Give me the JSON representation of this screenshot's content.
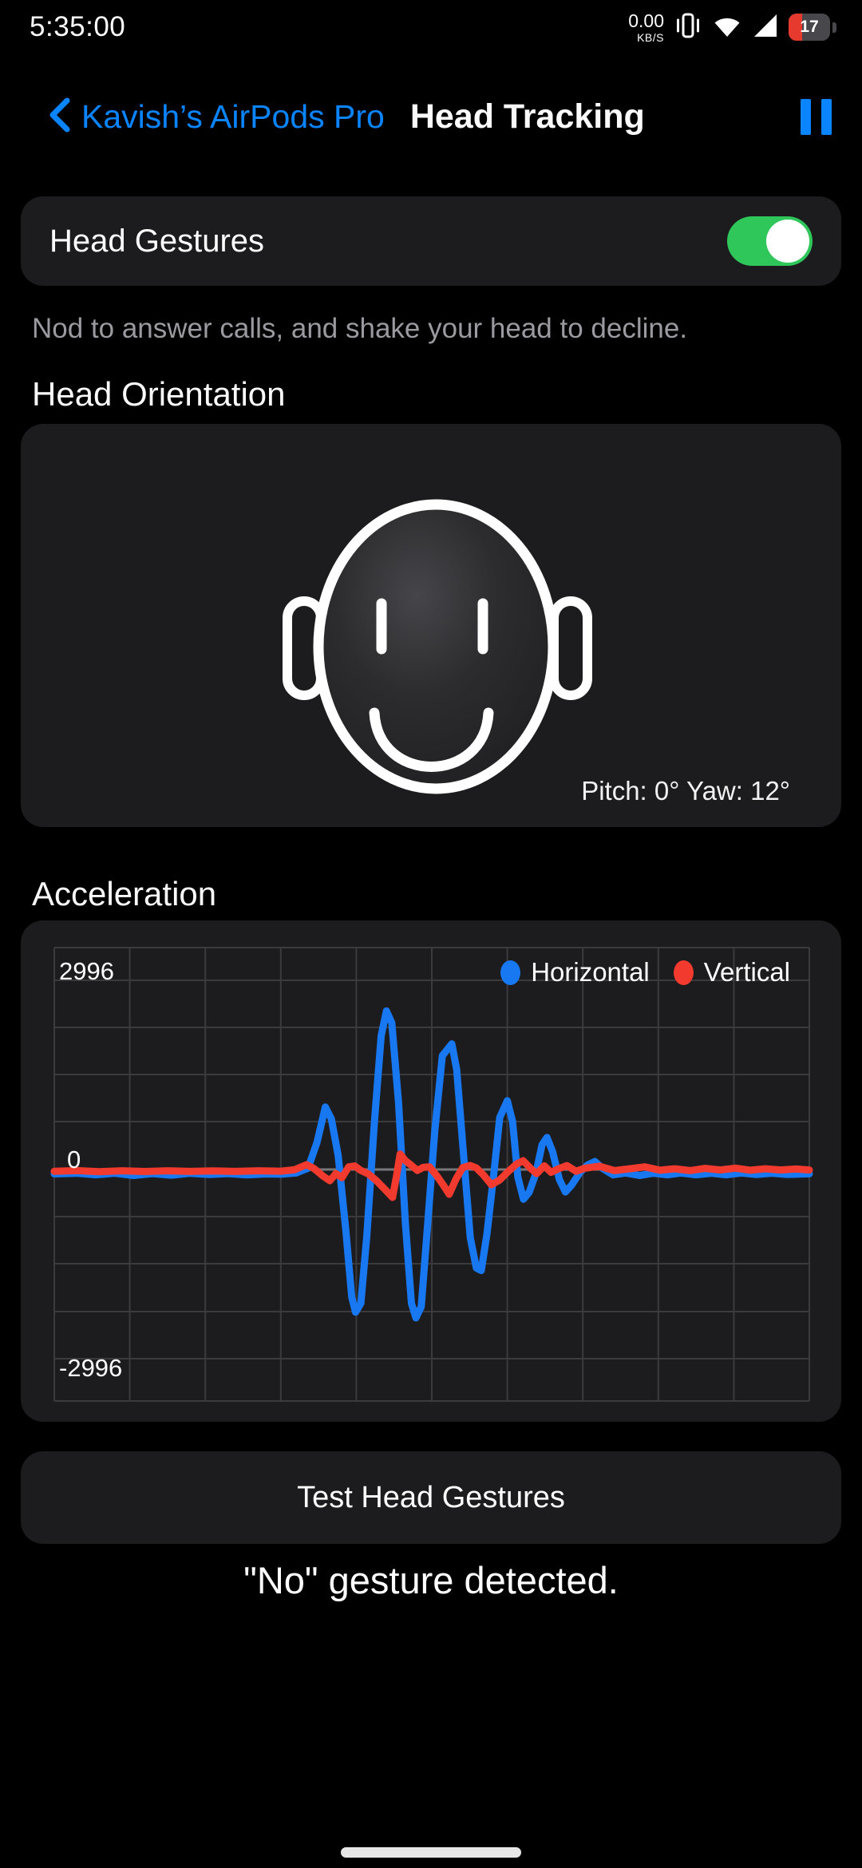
{
  "status_bar": {
    "time": "5:35:00",
    "network_speed": "0.00",
    "network_unit": "KB/S",
    "battery_percent": "17",
    "icons": [
      "vibrate-icon",
      "wifi-icon",
      "cell-signal-icon",
      "battery-icon"
    ]
  },
  "header": {
    "back_label": "Kavish’s AirPods Pro",
    "title": "Head Tracking"
  },
  "gesture_card": {
    "label": "Head Gestures",
    "toggle_state": "on"
  },
  "gesture_hint": "Nod to answer calls, and shake your head to decline.",
  "orientation": {
    "section_title": "Head Orientation",
    "pitch_yaw": "Pitch: 0° Yaw: 12°"
  },
  "acceleration": {
    "section_title": "Acceleration"
  },
  "test_button_label": "Test Head Gestures",
  "gesture_result": "\"No\" gesture detected.",
  "colors": {
    "accent": "#0a84ff",
    "green": "#2fc65a",
    "card": "#1c1c1e",
    "muted": "#9a9aa0",
    "battery-red": "#e63a2e",
    "grid": "#3b3b3e",
    "zero": "#78787c"
  },
  "chart_data": {
    "type": "line",
    "title": "Acceleration",
    "xlabel": "",
    "ylabel": "",
    "ylim": [
      -2996,
      2996
    ],
    "y_ticks": [
      "2996",
      "0",
      "-2996"
    ],
    "grid": true,
    "legend_position": "top-right",
    "x_range": [
      0,
      1
    ],
    "series": [
      {
        "name": "Horizontal",
        "color": "#1878f2",
        "points": [
          [
            0,
            -70
          ],
          [
            0.03,
            -60
          ],
          [
            0.055,
            -85
          ],
          [
            0.08,
            -60
          ],
          [
            0.105,
            -95
          ],
          [
            0.13,
            -65
          ],
          [
            0.155,
            -90
          ],
          [
            0.18,
            -60
          ],
          [
            0.205,
            -80
          ],
          [
            0.23,
            -65
          ],
          [
            0.255,
            -85
          ],
          [
            0.28,
            -70
          ],
          [
            0.3,
            -75
          ],
          [
            0.32,
            -55
          ],
          [
            0.336,
            20
          ],
          [
            0.348,
            430
          ],
          [
            0.359,
            990
          ],
          [
            0.367,
            800
          ],
          [
            0.376,
            220
          ],
          [
            0.386,
            -950
          ],
          [
            0.394,
            -2020
          ],
          [
            0.399,
            -2260
          ],
          [
            0.406,
            -2120
          ],
          [
            0.414,
            -1050
          ],
          [
            0.424,
            750
          ],
          [
            0.433,
            2120
          ],
          [
            0.44,
            2510
          ],
          [
            0.447,
            2320
          ],
          [
            0.456,
            1050
          ],
          [
            0.465,
            -850
          ],
          [
            0.473,
            -2120
          ],
          [
            0.479,
            -2350
          ],
          [
            0.486,
            -2170
          ],
          [
            0.494,
            -950
          ],
          [
            0.504,
            620
          ],
          [
            0.514,
            1800
          ],
          [
            0.5265,
            1990
          ],
          [
            0.533,
            1580
          ],
          [
            0.542,
            250
          ],
          [
            0.551,
            -1080
          ],
          [
            0.559,
            -1560
          ],
          [
            0.5655,
            -1600
          ],
          [
            0.573,
            -1020
          ],
          [
            0.582,
            -80
          ],
          [
            0.59,
            820
          ],
          [
            0.6,
            1090
          ],
          [
            0.607,
            760
          ],
          [
            0.614,
            -120
          ],
          [
            0.6215,
            -470
          ],
          [
            0.629,
            -360
          ],
          [
            0.638,
            -60
          ],
          [
            0.646,
            390
          ],
          [
            0.6525,
            507
          ],
          [
            0.66,
            280
          ],
          [
            0.669,
            -160
          ],
          [
            0.677,
            -355
          ],
          [
            0.685,
            -250
          ],
          [
            0.696,
            -50
          ],
          [
            0.706,
            70
          ],
          [
            0.716,
            127
          ],
          [
            0.727,
            10
          ],
          [
            0.74,
            -85
          ],
          [
            0.757,
            -55
          ],
          [
            0.775,
            -95
          ],
          [
            0.793,
            -60
          ],
          [
            0.812,
            -85
          ],
          [
            0.83,
            -55
          ],
          [
            0.85,
            -85
          ],
          [
            0.87,
            -60
          ],
          [
            0.89,
            -85
          ],
          [
            0.91,
            -55
          ],
          [
            0.93,
            -80
          ],
          [
            0.95,
            -60
          ],
          [
            0.97,
            -78
          ],
          [
            1,
            -68
          ]
        ]
      },
      {
        "name": "Vertical",
        "color": "#f23b2e",
        "points": [
          [
            0,
            -28
          ],
          [
            0.03,
            -18
          ],
          [
            0.06,
            -34
          ],
          [
            0.09,
            -20
          ],
          [
            0.12,
            -32
          ],
          [
            0.15,
            -20
          ],
          [
            0.18,
            -30
          ],
          [
            0.21,
            -22
          ],
          [
            0.24,
            -30
          ],
          [
            0.27,
            -20
          ],
          [
            0.3,
            -26
          ],
          [
            0.318,
            -5
          ],
          [
            0.334,
            76
          ],
          [
            0.344,
            15
          ],
          [
            0.356,
            -105
          ],
          [
            0.365,
            -177
          ],
          [
            0.373,
            -65
          ],
          [
            0.381,
            -130
          ],
          [
            0.39,
            42
          ],
          [
            0.398,
            55
          ],
          [
            0.406,
            -15
          ],
          [
            0.416,
            -70
          ],
          [
            0.427,
            -180
          ],
          [
            0.44,
            -340
          ],
          [
            0.448,
            -443
          ],
          [
            0.4535,
            -90
          ],
          [
            0.458,
            245
          ],
          [
            0.465,
            140
          ],
          [
            0.473,
            65
          ],
          [
            0.481,
            -15
          ],
          [
            0.489,
            35
          ],
          [
            0.497,
            42
          ],
          [
            0.506,
            -90
          ],
          [
            0.516,
            -260
          ],
          [
            0.523,
            -393
          ],
          [
            0.532,
            -150
          ],
          [
            0.541,
            30
          ],
          [
            0.551,
            63
          ],
          [
            0.559,
            25
          ],
          [
            0.569,
            -95
          ],
          [
            0.579,
            -241
          ],
          [
            0.59,
            -165
          ],
          [
            0.601,
            -35
          ],
          [
            0.612,
            85
          ],
          [
            0.621,
            139
          ],
          [
            0.631,
            15
          ],
          [
            0.639,
            -65
          ],
          [
            0.649,
            58
          ],
          [
            0.658,
            -45
          ],
          [
            0.668,
            12
          ],
          [
            0.679,
            62
          ],
          [
            0.691,
            -28
          ],
          [
            0.703,
            22
          ],
          [
            0.722,
            52
          ],
          [
            0.742,
            -18
          ],
          [
            0.762,
            12
          ],
          [
            0.782,
            42
          ],
          [
            0.802,
            -12
          ],
          [
            0.822,
            12
          ],
          [
            0.842,
            -18
          ],
          [
            0.862,
            18
          ],
          [
            0.882,
            -8
          ],
          [
            0.902,
            22
          ],
          [
            0.922,
            -12
          ],
          [
            0.942,
            12
          ],
          [
            0.962,
            -8
          ],
          [
            0.982,
            8
          ],
          [
            1,
            -8
          ]
        ]
      }
    ]
  }
}
